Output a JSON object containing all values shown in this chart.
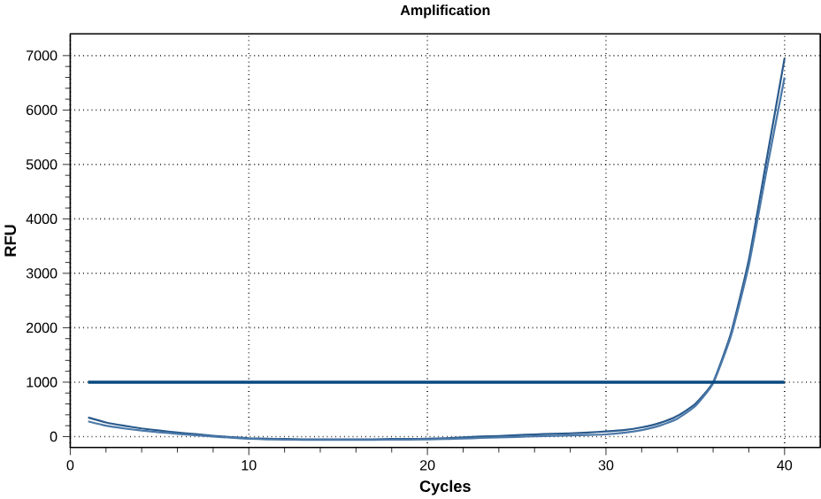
{
  "chart_data": {
    "type": "line",
    "title": "Amplification",
    "xlabel": "Cycles",
    "ylabel": "RFU",
    "x": [
      1,
      2,
      3,
      4,
      5,
      6,
      7,
      8,
      9,
      10,
      11,
      12,
      13,
      14,
      15,
      16,
      17,
      18,
      19,
      20,
      21,
      22,
      23,
      24,
      25,
      26,
      27,
      28,
      29,
      30,
      31,
      32,
      33,
      34,
      35,
      36,
      37,
      38,
      39,
      40
    ],
    "series": [
      {
        "color": "#2a5a8c",
        "values": [
          350,
          260,
          200,
          150,
          110,
          75,
          45,
          15,
          -10,
          -30,
          -40,
          -45,
          -50,
          -50,
          -50,
          -50,
          -50,
          -45,
          -45,
          -40,
          -30,
          -15,
          0,
          10,
          25,
          40,
          50,
          60,
          75,
          95,
          120,
          170,
          250,
          380,
          600,
          1000,
          1900,
          3250,
          5100,
          6950
        ]
      },
      {
        "color": "#4a78a8",
        "values": [
          280,
          200,
          150,
          110,
          80,
          50,
          25,
          0,
          -20,
          -40,
          -50,
          -55,
          -60,
          -60,
          -60,
          -60,
          -60,
          -55,
          -55,
          -50,
          -45,
          -35,
          -25,
          -15,
          -5,
          5,
          15,
          20,
          30,
          40,
          70,
          120,
          200,
          330,
          560,
          980,
          1850,
          3150,
          4900,
          6600
        ]
      }
    ],
    "xlim": [
      0,
      42
    ],
    "ylim": [
      -200,
      7400
    ],
    "xticks": [
      0,
      10,
      20,
      30,
      40
    ],
    "yticks": [
      0,
      1000,
      2000,
      3000,
      4000,
      5000,
      6000,
      7000
    ],
    "grid": true,
    "marker": "none",
    "line_style": "solid",
    "ref_lines": [
      {
        "axis": "y",
        "value": 1000,
        "color": "#0a4a80"
      }
    ]
  }
}
